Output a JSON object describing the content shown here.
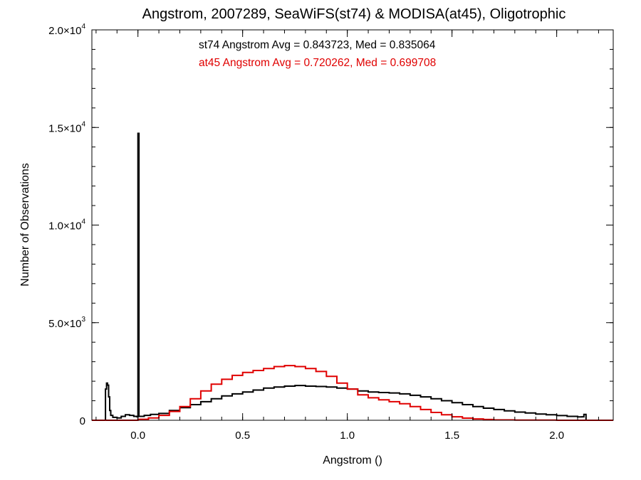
{
  "chart_data": {
    "type": "line",
    "title": "Angstrom, 2007289, SeaWiFS(st74) & MODISA(at45), Oligotrophic",
    "xlabel": "Angstrom ()",
    "ylabel": "Number of Observations",
    "xlim": [
      -0.22,
      2.27
    ],
    "ylim": [
      0,
      20000
    ],
    "x_ticks": [
      {
        "value": 0.0,
        "label": "0.0"
      },
      {
        "value": 0.5,
        "label": "0.5"
      },
      {
        "value": 1.0,
        "label": "1.0"
      },
      {
        "value": 1.5,
        "label": "1.5"
      },
      {
        "value": 2.0,
        "label": "2.0"
      }
    ],
    "y_ticks": [
      {
        "value": 0,
        "mant": "0",
        "exp": ""
      },
      {
        "value": 5000,
        "mant": "5.0×10",
        "exp": "3"
      },
      {
        "value": 10000,
        "mant": "1.0×10",
        "exp": "4"
      },
      {
        "value": 15000,
        "mant": "1.5×10",
        "exp": "4"
      },
      {
        "value": 20000,
        "mant": "2.0×10",
        "exp": "4"
      }
    ],
    "annotations": [
      {
        "text": "st74 Angstrom Avg = 0.843723, Med = 0.835064",
        "color": "#000000"
      },
      {
        "text": "at45 Angstrom Avg = 0.720262, Med = 0.699708",
        "color": "#e00000"
      }
    ],
    "series": [
      {
        "color": "#000000",
        "style": "step",
        "points": [
          [
            -0.22,
            0
          ],
          [
            -0.16,
            0
          ],
          [
            -0.155,
            1600
          ],
          [
            -0.15,
            1900
          ],
          [
            -0.145,
            1800
          ],
          [
            -0.14,
            1200
          ],
          [
            -0.135,
            500
          ],
          [
            -0.13,
            250
          ],
          [
            -0.12,
            150
          ],
          [
            -0.1,
            120
          ],
          [
            -0.08,
            200
          ],
          [
            -0.06,
            280
          ],
          [
            -0.04,
            250
          ],
          [
            -0.02,
            200
          ],
          [
            -0.005,
            180
          ],
          [
            0.0,
            14700
          ],
          [
            0.005,
            200
          ],
          [
            0.03,
            250
          ],
          [
            0.06,
            300
          ],
          [
            0.1,
            350
          ],
          [
            0.15,
            500
          ],
          [
            0.2,
            650
          ],
          [
            0.25,
            800
          ],
          [
            0.3,
            950
          ],
          [
            0.35,
            1100
          ],
          [
            0.4,
            1250
          ],
          [
            0.45,
            1350
          ],
          [
            0.5,
            1450
          ],
          [
            0.55,
            1550
          ],
          [
            0.6,
            1650
          ],
          [
            0.65,
            1700
          ],
          [
            0.7,
            1750
          ],
          [
            0.75,
            1780
          ],
          [
            0.8,
            1750
          ],
          [
            0.85,
            1730
          ],
          [
            0.9,
            1700
          ],
          [
            0.95,
            1650
          ],
          [
            1.0,
            1600
          ],
          [
            1.05,
            1500
          ],
          [
            1.1,
            1450
          ],
          [
            1.15,
            1420
          ],
          [
            1.2,
            1400
          ],
          [
            1.25,
            1350
          ],
          [
            1.3,
            1280
          ],
          [
            1.35,
            1200
          ],
          [
            1.4,
            1100
          ],
          [
            1.45,
            1000
          ],
          [
            1.5,
            900
          ],
          [
            1.55,
            800
          ],
          [
            1.6,
            700
          ],
          [
            1.65,
            620
          ],
          [
            1.7,
            550
          ],
          [
            1.75,
            480
          ],
          [
            1.8,
            420
          ],
          [
            1.85,
            370
          ],
          [
            1.9,
            320
          ],
          [
            1.95,
            280
          ],
          [
            2.0,
            240
          ],
          [
            2.05,
            200
          ],
          [
            2.1,
            170
          ],
          [
            2.12,
            180
          ],
          [
            2.13,
            300
          ],
          [
            2.14,
            0
          ],
          [
            2.27,
            0
          ]
        ]
      },
      {
        "color": "#e00000",
        "style": "step",
        "points": [
          [
            -0.22,
            0
          ],
          [
            -0.05,
            0
          ],
          [
            0.0,
            50
          ],
          [
            0.05,
            120
          ],
          [
            0.1,
            250
          ],
          [
            0.15,
            450
          ],
          [
            0.2,
            700
          ],
          [
            0.25,
            1100
          ],
          [
            0.3,
            1500
          ],
          [
            0.35,
            1850
          ],
          [
            0.4,
            2100
          ],
          [
            0.45,
            2300
          ],
          [
            0.5,
            2450
          ],
          [
            0.55,
            2550
          ],
          [
            0.6,
            2650
          ],
          [
            0.65,
            2750
          ],
          [
            0.7,
            2800
          ],
          [
            0.75,
            2750
          ],
          [
            0.8,
            2650
          ],
          [
            0.85,
            2500
          ],
          [
            0.9,
            2250
          ],
          [
            0.95,
            1900
          ],
          [
            1.0,
            1600
          ],
          [
            1.05,
            1300
          ],
          [
            1.1,
            1150
          ],
          [
            1.15,
            1050
          ],
          [
            1.2,
            950
          ],
          [
            1.25,
            850
          ],
          [
            1.3,
            700
          ],
          [
            1.35,
            550
          ],
          [
            1.4,
            400
          ],
          [
            1.45,
            280
          ],
          [
            1.5,
            180
          ],
          [
            1.55,
            110
          ],
          [
            1.6,
            70
          ],
          [
            1.65,
            40
          ],
          [
            1.7,
            20
          ],
          [
            1.8,
            8
          ],
          [
            2.0,
            0
          ],
          [
            2.27,
            0
          ]
        ]
      }
    ]
  }
}
